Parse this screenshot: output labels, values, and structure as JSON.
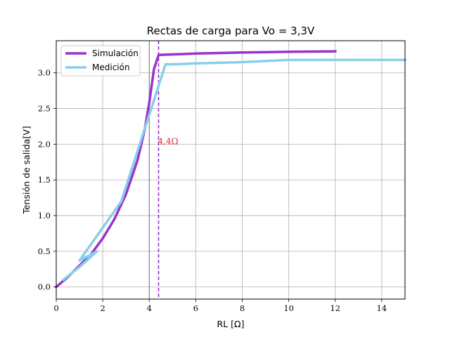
{
  "chart_data": {
    "type": "line",
    "title": "Rectas de carga para Vo = 3,3V",
    "xlabel": "RL [Ω]",
    "ylabel": "Tensión de salida[V]",
    "xlim": [
      0,
      15
    ],
    "ylim": [
      -0.17,
      3.45
    ],
    "xticks": [
      0,
      2,
      4,
      6,
      8,
      10,
      12,
      14
    ],
    "yticks": [
      0.0,
      0.5,
      1.0,
      1.5,
      2.0,
      2.5,
      3.0
    ],
    "xtick_labels": [
      "0",
      "2",
      "4",
      "6",
      "8",
      "10",
      "12",
      "14"
    ],
    "ytick_labels": [
      "0.0",
      "0.5",
      "1.0",
      "1.5",
      "2.0",
      "2.5",
      "3.0"
    ],
    "grid": true,
    "legend_position": "top-left",
    "series": [
      {
        "name": "Simulación",
        "color": "#9932cc",
        "x": [
          0,
          0.5,
          1.0,
          1.5,
          2.0,
          2.5,
          3.0,
          3.5,
          3.8,
          4.0,
          4.2,
          4.3,
          4.4,
          6,
          8,
          10,
          12
        ],
        "y": [
          0,
          0.14,
          0.3,
          0.46,
          0.68,
          0.95,
          1.3,
          1.78,
          2.2,
          2.58,
          3.05,
          3.15,
          3.25,
          3.27,
          3.285,
          3.295,
          3.3
        ]
      },
      {
        "name": "Medición",
        "color": "#87ceeb",
        "x": [
          0.3,
          1.0,
          1.75,
          1.0,
          2.8,
          4.7,
          5.2,
          5.8,
          8,
          10,
          12,
          15
        ],
        "y": [
          0.1,
          0.28,
          0.5,
          0.37,
          1.2,
          3.12,
          3.12,
          3.13,
          3.15,
          3.18,
          3.18,
          3.18
        ]
      }
    ],
    "vlines": [
      {
        "x": 4.4,
        "color": "#9932cc",
        "style": "dashed"
      },
      {
        "x": 4.0,
        "color": "#666666",
        "style": "solid"
      }
    ],
    "annotations": [
      {
        "text": "4,4Ω",
        "x": 4.4,
        "y": 2.05,
        "color": "#e8262a"
      }
    ]
  }
}
